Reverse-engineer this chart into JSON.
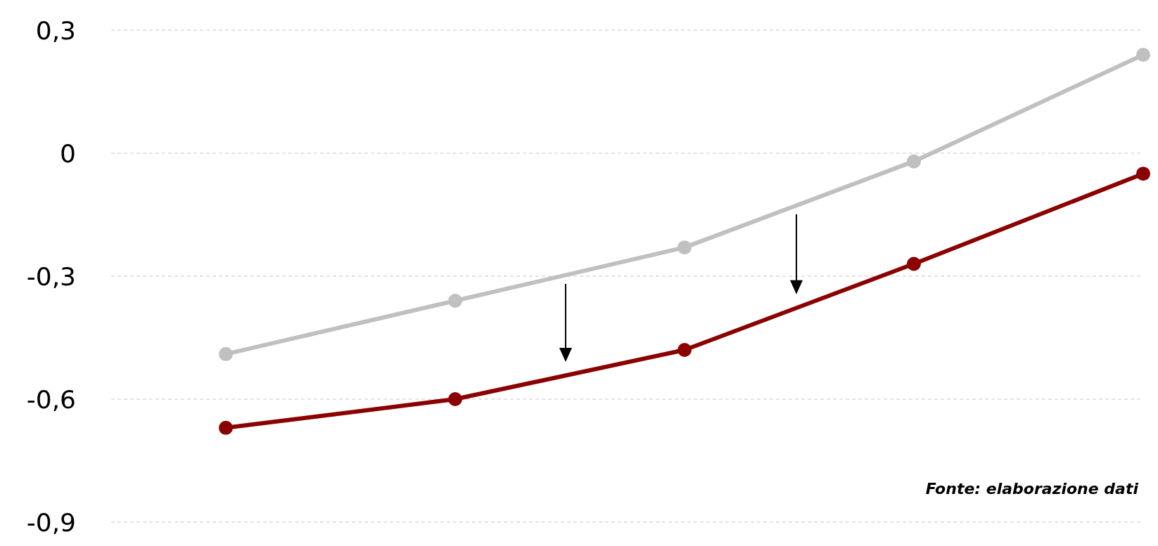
{
  "chart_data": {
    "type": "line",
    "categories": [
      null,
      null,
      null,
      null,
      null
    ],
    "series": [
      {
        "color": "#c0c0c0",
        "values": [
          -0.49,
          -0.36,
          -0.23,
          -0.02,
          0.24
        ]
      },
      {
        "color": "#8b0000",
        "values": [
          -0.67,
          -0.6,
          -0.48,
          -0.27,
          -0.05
        ]
      }
    ],
    "ylim": [
      -0.9,
      0.3
    ],
    "yticks": [
      {
        "value": 0.3,
        "label": "0,3"
      },
      {
        "value": 0,
        "label": "0"
      },
      {
        "value": -0.3,
        "label": "-0,3"
      },
      {
        "value": -0.6,
        "label": "-0,6"
      },
      {
        "value": -0.9,
        "label": "-0,9"
      }
    ],
    "grid": "y",
    "marker": "circle",
    "line_style": "solid",
    "annotations": [
      "Fonte: elaborazione dati"
    ]
  }
}
